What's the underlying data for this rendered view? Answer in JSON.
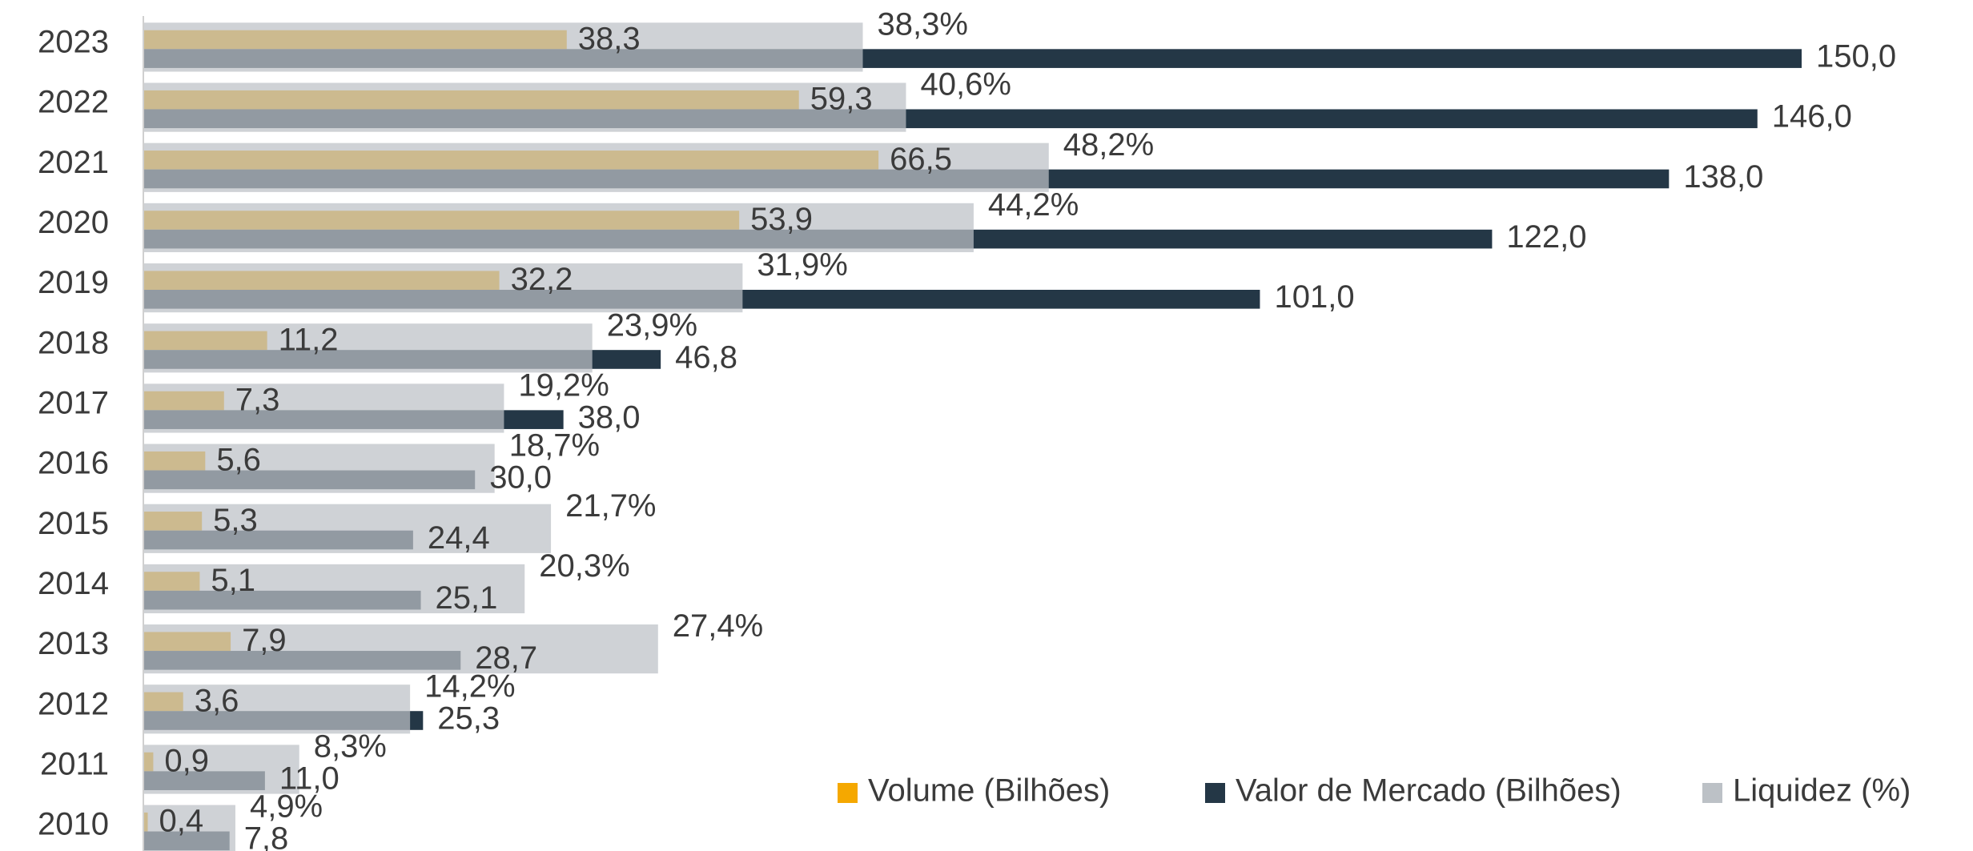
{
  "chart_data": {
    "type": "bar",
    "orientation": "horizontal",
    "categories": [
      "2023",
      "2022",
      "2021",
      "2020",
      "2019",
      "2018",
      "2017",
      "2016",
      "2015",
      "2014",
      "2013",
      "2012",
      "2011",
      "2010"
    ],
    "xlim": [
      0,
      165.5
    ],
    "x2lim": [
      0,
      97.4
    ],
    "series": [
      {
        "name": "Volume (Bilhões)",
        "color": "#f5a800",
        "values": [
          38.3,
          59.3,
          66.5,
          53.9,
          32.2,
          11.2,
          7.3,
          5.6,
          5.3,
          5.1,
          7.9,
          3.6,
          0.9,
          0.4
        ],
        "value_labels": [
          "38,3",
          "59,3",
          "66,5",
          "53,9",
          "32,2",
          "11,2",
          "7,3",
          "5,6",
          "5,3",
          "5,1",
          "7,9",
          "3,6",
          "0,9",
          "0,4"
        ]
      },
      {
        "name": "Valor de Mercado (Bilhões)",
        "color": "#243746",
        "values": [
          150.0,
          146.0,
          138.0,
          122.0,
          101.0,
          46.8,
          38.0,
          30.0,
          24.4,
          25.1,
          28.7,
          25.3,
          11.0,
          7.8
        ],
        "value_labels": [
          "150,0",
          "146,0",
          "138,0",
          "122,0",
          "101,0",
          "46,8",
          "38,0",
          "30,0",
          "24,4",
          "25,1",
          "28,7",
          "25,3",
          "11,0",
          "7,8"
        ]
      },
      {
        "name": "Liquidez (%)",
        "color": "#bcc1c6",
        "axis": "x2",
        "values": [
          38.3,
          40.6,
          48.2,
          44.2,
          31.9,
          23.9,
          19.2,
          18.7,
          21.7,
          20.3,
          27.4,
          14.2,
          8.3,
          4.9
        ],
        "value_labels": [
          "38,3%",
          "40,6%",
          "48,2%",
          "44,2%",
          "31,9%",
          "23,9%",
          "19,2%",
          "18,7%",
          "21,7%",
          "20,3%",
          "27,4%",
          "14,2%",
          "8,3%",
          "4,9%"
        ]
      }
    ]
  }
}
